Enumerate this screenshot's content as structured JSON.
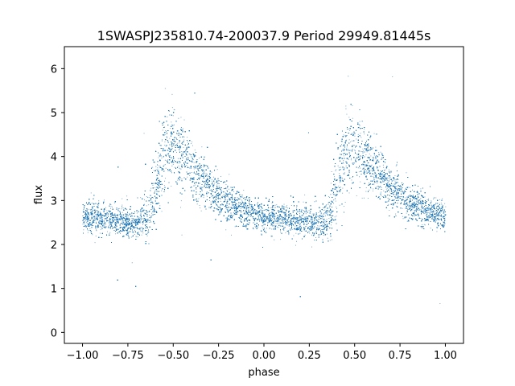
{
  "chart_data": {
    "type": "scatter",
    "title": "1SWASPJ235810.74-200037.9 Period 29949.81445s",
    "xlabel": "phase",
    "ylabel": "flux",
    "xlim": [
      -1.1,
      1.1
    ],
    "ylim": [
      -0.25,
      6.5
    ],
    "xticks": [
      -1.0,
      -0.75,
      -0.5,
      -0.25,
      0.0,
      0.25,
      0.5,
      0.75,
      1.0
    ],
    "xtick_labels": [
      "−1.00",
      "−0.75",
      "−0.50",
      "−0.25",
      "0.00",
      "0.25",
      "0.50",
      "0.75",
      "1.00"
    ],
    "yticks": [
      0,
      1,
      2,
      3,
      4,
      5,
      6
    ],
    "ytick_labels": [
      "0",
      "1",
      "2",
      "3",
      "4",
      "5",
      "6"
    ],
    "grid": false,
    "point_color": "#1f77b4",
    "series": [
      {
        "curve_x": [
          -1.0,
          -0.9,
          -0.8,
          -0.7,
          -0.65,
          -0.6,
          -0.55,
          -0.5,
          -0.45,
          -0.4,
          -0.3,
          -0.2,
          -0.1,
          0.0,
          0.1,
          0.2,
          0.3,
          0.35,
          0.4,
          0.45,
          0.5,
          0.55,
          0.6,
          0.7,
          0.8,
          0.9,
          1.0
        ],
        "curve_y": [
          2.65,
          2.6,
          2.55,
          2.5,
          2.6,
          3.3,
          4.1,
          4.3,
          4.05,
          3.75,
          3.3,
          2.95,
          2.75,
          2.65,
          2.6,
          2.55,
          2.5,
          2.6,
          3.3,
          4.1,
          4.3,
          4.05,
          3.75,
          3.3,
          2.95,
          2.75,
          2.65
        ],
        "curve_spread": [
          0.17,
          0.17,
          0.17,
          0.17,
          0.25,
          0.45,
          0.45,
          0.42,
          0.38,
          0.32,
          0.26,
          0.2,
          0.18,
          0.17,
          0.17,
          0.17,
          0.17,
          0.25,
          0.45,
          0.45,
          0.42,
          0.38,
          0.32,
          0.26,
          0.2,
          0.18,
          0.17
        ],
        "point_count": 26000
      }
    ]
  }
}
